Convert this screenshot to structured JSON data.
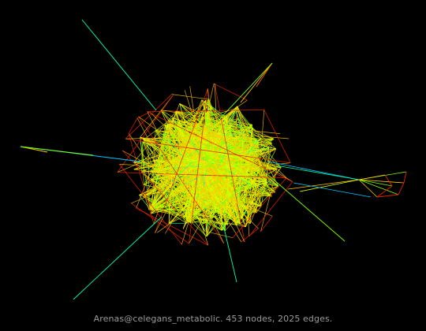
{
  "graph": {
    "nodes": 453,
    "edges": 2025,
    "palette": [
      "#00c8ff",
      "#00ffa0",
      "#80ff00",
      "#d8ff00",
      "#ffc800",
      "#ff5a00",
      "#e02000"
    ]
  },
  "caption": {
    "text": "Arenas@celegans_metabolic. 453 nodes, 2025 edges."
  }
}
